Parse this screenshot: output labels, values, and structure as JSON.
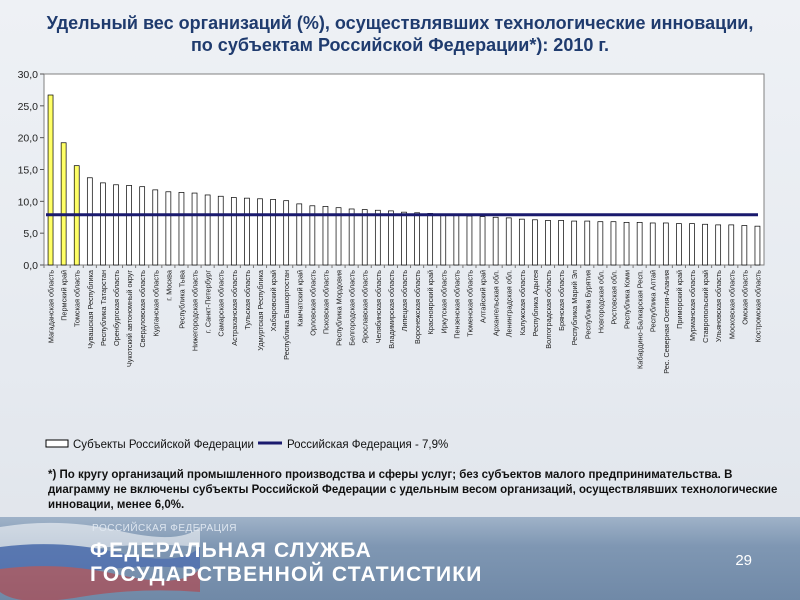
{
  "title": "Удельный вес организаций (%), осуществлявших технологические инновации, по субъектам Российской Федерации*): 2010 г.",
  "footnote": "*) По кругу организаций промышленного производства и сферы услуг; без субъектов малого предпринимательства. В диаграмму не включены субъекты Российской Федерации с удельным весом организаций, осуществлявших технологические инновации, менее 6,0%.",
  "footer": {
    "agency_small": "РОССИЙСКАЯ ФЕДЕРАЦИЯ",
    "agency_line1": "ФЕДЕРАЛЬНАЯ СЛУЖБА",
    "agency_line2": "ГОСУДАРСТВЕННОЙ СТАТИСТИКИ",
    "page_number": "29"
  },
  "colors": {
    "bar_default": "#ffffff",
    "bar_highlight": "#ffff66",
    "bar_outline": "#000000",
    "reference_line": "#1a1a6e",
    "title": "#1f3b6e"
  },
  "chart_data": {
    "type": "bar",
    "title": "Удельный вес организаций (%), осуществлявших технологические инновации, по субъектам Российской Федерации*): 2010 г.",
    "ylim": [
      0,
      30
    ],
    "yticks": [
      "0,0",
      "5,0",
      "10,0",
      "15,0",
      "20,0",
      "25,0",
      "30,0"
    ],
    "grid": false,
    "legend": {
      "position": "bottom-left",
      "entries": [
        "Субъекты Российской Федерации",
        "Российская Федерация - 7,9%"
      ]
    },
    "reference_line": {
      "name": "Российская Федерация - 7,9%",
      "value": 7.9
    },
    "highlighted_count": 3,
    "categories": [
      "Магаданская область",
      "Пермский край",
      "Томская область",
      "Чувашская Республика",
      "Республика Татарстан",
      "Оренбургская область",
      "Чукотский автономный округ",
      "Свердловская область",
      "Курганская область",
      "г. Москва",
      "Республика Тыва",
      "Нижегородская область",
      "г. Санкт-Петербург",
      "Самарская область",
      "Астраханская область",
      "Тульская область",
      "Удмуртская Республика",
      "Хабаровский край",
      "Республика Башкортостан",
      "Камчатский край",
      "Орловская область",
      "Псковская область",
      "Республика Мордовия",
      "Белгородская область",
      "Ярославская область",
      "Челябинская область",
      "Владимирская область",
      "Липецкая область",
      "Воронежская область",
      "Красноярский край",
      "Иркутская область",
      "Пензенская область",
      "Тюменская область",
      "Алтайский край",
      "Архангельская обл.",
      "Ленинградская обл.",
      "Калужская область",
      "Республика Адыгея",
      "Волгоградская область",
      "Брянская область",
      "Республика Марий Эл",
      "Республика Бурятия",
      "Новгородская обл.",
      "Ростовская обл.",
      "Республика Коми",
      "Кабардино-Балкарская Респ.",
      "Республика Алтай",
      "Рес. Северная Осетия-Алания",
      "Приморский край",
      "Мурманская область",
      "Ставропольский край",
      "Ульяновская область",
      "Московская область",
      "Омская область",
      "Костромская область"
    ],
    "values": [
      26.7,
      19.2,
      15.6,
      13.7,
      12.9,
      12.6,
      12.5,
      12.3,
      11.8,
      11.5,
      11.4,
      11.3,
      11.0,
      10.8,
      10.6,
      10.5,
      10.4,
      10.3,
      10.1,
      9.6,
      9.3,
      9.2,
      9.0,
      8.8,
      8.7,
      8.6,
      8.5,
      8.3,
      8.2,
      8.1,
      7.9,
      7.8,
      7.7,
      7.6,
      7.5,
      7.4,
      7.2,
      7.1,
      7.0,
      7.0,
      6.9,
      6.9,
      6.8,
      6.8,
      6.7,
      6.7,
      6.6,
      6.6,
      6.5,
      6.5,
      6.4,
      6.3,
      6.3,
      6.2,
      6.1
    ]
  }
}
